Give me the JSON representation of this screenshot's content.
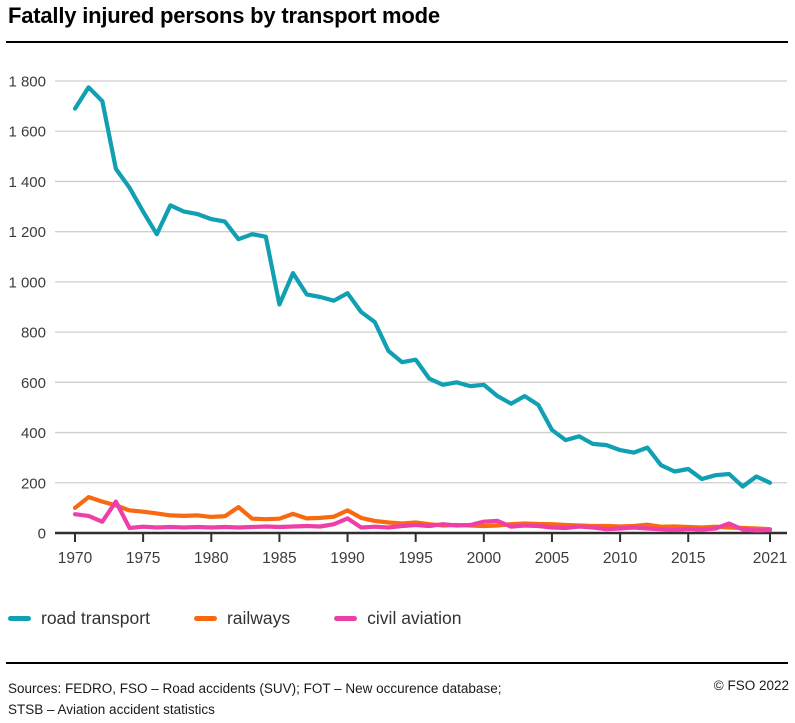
{
  "title": "Fatally injured persons by transport mode",
  "chart_data": {
    "type": "line",
    "title": "Fatally injured persons by transport mode",
    "xlabel": "",
    "ylabel": "",
    "x_range": [
      1970,
      2021
    ],
    "ylim": [
      0,
      1850
    ],
    "grid": "horizontal",
    "legend_position": "bottom",
    "x": [
      1970,
      1971,
      1972,
      1973,
      1974,
      1975,
      1976,
      1977,
      1978,
      1979,
      1980,
      1981,
      1982,
      1983,
      1984,
      1985,
      1986,
      1987,
      1988,
      1989,
      1990,
      1991,
      1992,
      1993,
      1994,
      1995,
      1996,
      1997,
      1998,
      1999,
      2000,
      2001,
      2002,
      2003,
      2004,
      2005,
      2006,
      2007,
      2008,
      2009,
      2010,
      2011,
      2012,
      2013,
      2014,
      2015,
      2016,
      2017,
      2018,
      2019,
      2020,
      2021
    ],
    "series": [
      {
        "name": "road transport",
        "color": "#10a0b2",
        "values": [
          1690,
          1775,
          1720,
          1450,
          1375,
          1280,
          1190,
          1305,
          1280,
          1270,
          1250,
          1240,
          1170,
          1190,
          1180,
          910,
          1035,
          950,
          940,
          925,
          955,
          880,
          840,
          725,
          680,
          690,
          615,
          590,
          600,
          585,
          590,
          545,
          515,
          545,
          510,
          410,
          370,
          385,
          355,
          350,
          330,
          320,
          340,
          270,
          245,
          255,
          215,
          230,
          235,
          185,
          225,
          200
        ]
      },
      {
        "name": "railways",
        "color": "#f96a10",
        "values": [
          100,
          143,
          125,
          110,
          90,
          85,
          78,
          70,
          68,
          70,
          64,
          67,
          103,
          57,
          55,
          57,
          76,
          58,
          60,
          65,
          90,
          60,
          48,
          42,
          38,
          42,
          35,
          30,
          32,
          30,
          28,
          30,
          35,
          38,
          36,
          35,
          32,
          30,
          28,
          28,
          26,
          28,
          33,
          25,
          26,
          24,
          22,
          25,
          22,
          20,
          18,
          15
        ]
      },
      {
        "name": "civil aviation",
        "color": "#ee3fa8",
        "values": [
          75,
          68,
          45,
          125,
          20,
          25,
          22,
          24,
          22,
          24,
          22,
          24,
          22,
          24,
          26,
          24,
          26,
          28,
          26,
          35,
          58,
          22,
          25,
          22,
          28,
          32,
          28,
          35,
          30,
          32,
          45,
          48,
          25,
          30,
          28,
          22,
          20,
          26,
          22,
          15,
          18,
          22,
          18,
          15,
          12,
          16,
          14,
          18,
          38,
          14,
          10,
          12
        ]
      }
    ],
    "yticks": {
      "values": [
        0,
        200,
        400,
        600,
        800,
        1000,
        1200,
        1400,
        1600,
        1800
      ],
      "labels": [
        "0",
        "200",
        "400",
        "600",
        "800",
        "1 000",
        "1 200",
        "1 400",
        "1 600",
        "1 800"
      ]
    },
    "xticks": {
      "values": [
        1970,
        1975,
        1980,
        1985,
        1990,
        1995,
        2000,
        2005,
        2010,
        2015,
        2021
      ],
      "labels": [
        "1970",
        "1975",
        "1980",
        "1985",
        "1990",
        "1995",
        "2000",
        "2005",
        "2010",
        "2015",
        "2021"
      ]
    }
  },
  "colors": {
    "grid": "#cfcfcf",
    "axis": "#2f2f2f",
    "tick_label": "#3c3c3c"
  },
  "footer": {
    "sources_line1": "Sources: FEDRO, FSO – Road accidents (SUV); FOT – New occurence database;",
    "sources_line2": "STSB – Aviation accident statistics",
    "copyright": "© FSO 2022"
  }
}
